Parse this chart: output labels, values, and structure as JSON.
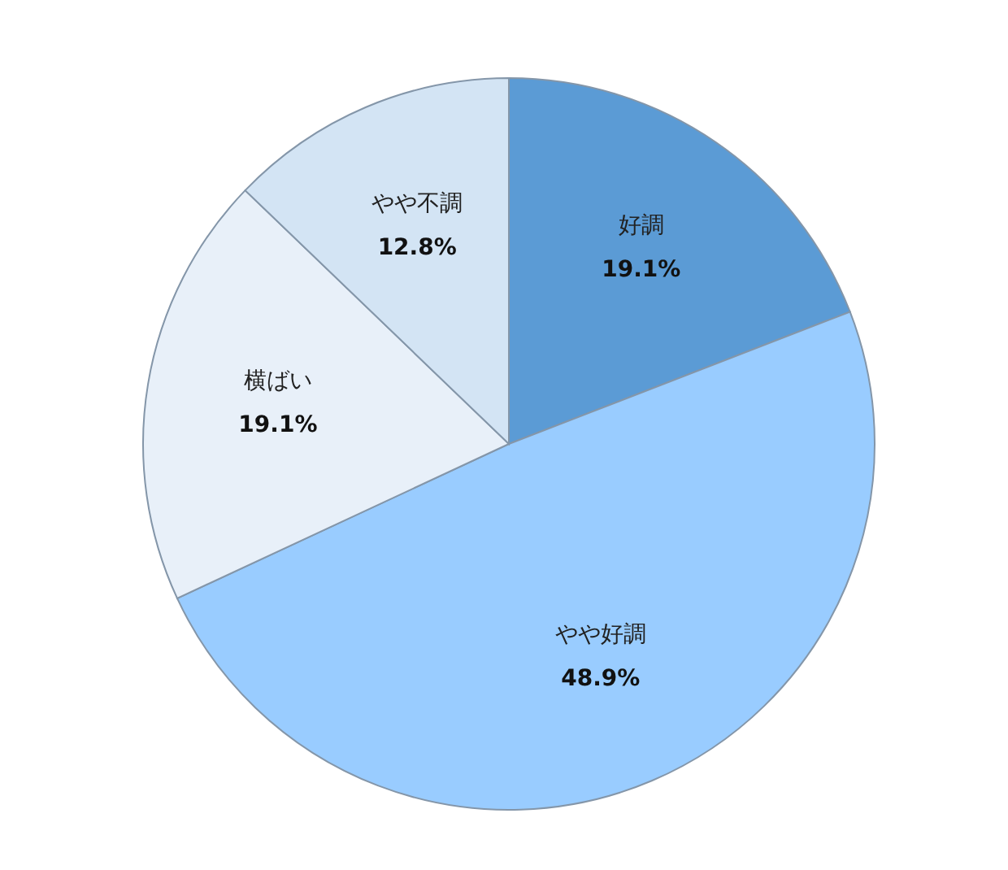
{
  "chart_data": {
    "type": "pie",
    "categories": [
      "好調",
      "やや好調",
      "横ばい",
      "やや不調"
    ],
    "values": [
      19.1,
      48.9,
      19.1,
      12.8
    ],
    "value_labels": [
      "19.1%",
      "48.9%",
      "19.1%",
      "12.8%"
    ],
    "colors": [
      "#5b9bd5",
      "#99ccff",
      "#e8f0f9",
      "#d3e4f4"
    ]
  }
}
